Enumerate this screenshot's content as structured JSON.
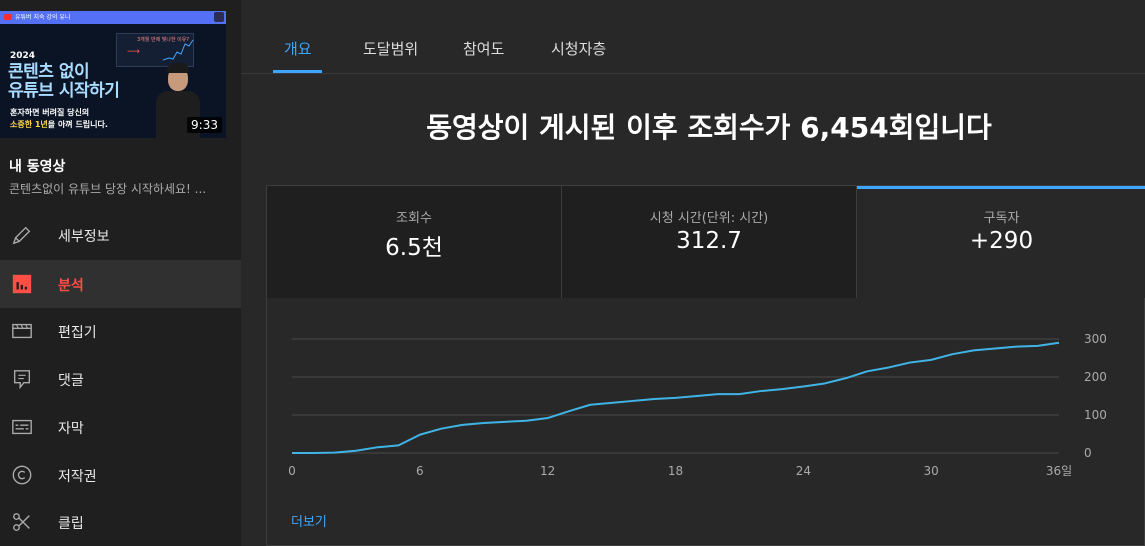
{
  "thumbnail": {
    "top_text": "유튜버 지숙 강의 유니",
    "year": "2024",
    "headline_1": "콘텐츠 없이",
    "headline_2": "유튜브 시작하기",
    "sub_1": "혼자하면 버려질 당신의",
    "sub_2_highlight": "소중한 1년",
    "sub_2_rest": "을 아껴 드립니다.",
    "mini_caption": "3개월 만에 빛나한 이유?",
    "duration": "9:33"
  },
  "sidebar": {
    "section_title": "내 동영상",
    "video_title": "콘텐츠없이 유튜브 당장 시작하세요! ...",
    "items": [
      {
        "label": "세부정보",
        "icon": "pencil-icon"
      },
      {
        "label": "분석",
        "icon": "analytics-icon",
        "active": true
      },
      {
        "label": "편집기",
        "icon": "editor-icon"
      },
      {
        "label": "댓글",
        "icon": "comments-icon"
      },
      {
        "label": "자막",
        "icon": "subtitles-icon"
      },
      {
        "label": "저작권",
        "icon": "copyright-icon"
      },
      {
        "label": "클립",
        "icon": "scissors-icon"
      }
    ]
  },
  "tabs": [
    "개요",
    "도달범위",
    "참여도",
    "시청자층"
  ],
  "active_tab": "개요",
  "headline": {
    "prefix": "동영상이 게시된 이후 조회수가 ",
    "count": "6,454",
    "suffix": "회입니다"
  },
  "metrics": [
    {
      "label": "조회수",
      "value": "6.5천"
    },
    {
      "label": "시청 시간(단위: 시간)",
      "value": "312.7"
    },
    {
      "label": "구독자",
      "value": "+290",
      "active": true
    }
  ],
  "more_link": "더보기",
  "colors": {
    "accent": "#3ea6ff",
    "active_red": "#ff4e45",
    "line": "#41b4e6"
  },
  "chart_data": {
    "type": "line",
    "series": [
      {
        "x": [
          0,
          1,
          2,
          3,
          4,
          5,
          6,
          7,
          8,
          9,
          10,
          11,
          12,
          13,
          14,
          15,
          16,
          17,
          18,
          19,
          20,
          21,
          22,
          23,
          24,
          25,
          26,
          27,
          28,
          29,
          30,
          31,
          32,
          33,
          34,
          35,
          36
        ],
        "values": [
          0,
          0,
          1,
          6,
          15,
          20,
          48,
          64,
          74,
          79,
          82,
          85,
          92,
          110,
          127,
          132,
          137,
          142,
          145,
          150,
          155,
          155,
          163,
          168,
          175,
          183,
          197,
          215,
          225,
          238,
          245,
          260,
          270,
          275,
          280,
          282,
          290
        ]
      }
    ],
    "x_ticks": [
      "0",
      "6",
      "12",
      "18",
      "24",
      "30",
      "36일"
    ],
    "x_tick_values": [
      0,
      6,
      12,
      18,
      24,
      30,
      36
    ],
    "y_ticks": [
      "0",
      "100",
      "200",
      "300"
    ],
    "y_tick_values": [
      0,
      100,
      200,
      300
    ],
    "xlim": [
      0,
      36
    ],
    "ylim": [
      0,
      300
    ],
    "grid": true,
    "y_axis_side": "right"
  }
}
